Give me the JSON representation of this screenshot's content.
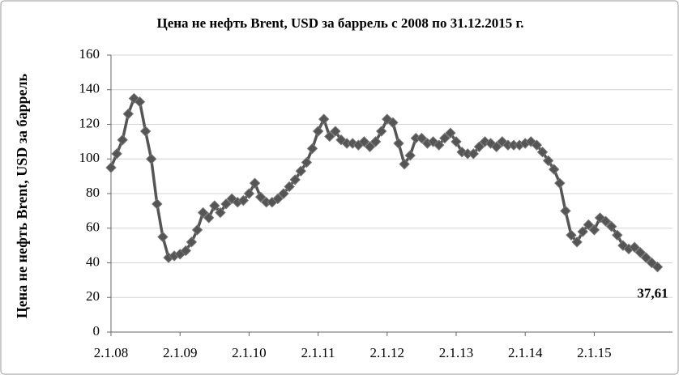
{
  "chart_data": {
    "type": "line",
    "title": "Цена не нефть Brent, USD за баррель с 2008 по 31.12.2015 г.",
    "y_label": "Цена не нефть Brent, USD за баррель",
    "categories": [
      "2.1.08",
      null,
      null,
      null,
      null,
      null,
      null,
      null,
      null,
      null,
      null,
      null,
      "2.1.09",
      null,
      null,
      null,
      null,
      null,
      null,
      null,
      null,
      null,
      null,
      null,
      "2.1.10",
      null,
      null,
      null,
      null,
      null,
      null,
      null,
      null,
      null,
      null,
      null,
      "2.1.11",
      null,
      null,
      null,
      null,
      null,
      null,
      null,
      null,
      null,
      null,
      null,
      "2.1.12",
      null,
      null,
      null,
      null,
      null,
      null,
      null,
      null,
      null,
      null,
      null,
      "2.1.13",
      null,
      null,
      null,
      null,
      null,
      null,
      null,
      null,
      null,
      null,
      null,
      "2.1.14",
      null,
      null,
      null,
      null,
      null,
      null,
      null,
      null,
      null,
      null,
      null,
      "2.1.15",
      null,
      null,
      null,
      null,
      null,
      null,
      null,
      null,
      null,
      null,
      null
    ],
    "values": [
      95,
      103,
      111,
      126,
      135,
      133,
      116,
      100,
      74,
      55,
      43,
      44,
      45,
      47,
      52,
      59,
      69,
      66,
      73,
      69,
      74,
      77,
      75,
      76,
      80,
      86,
      78,
      75,
      75,
      77,
      80,
      84,
      88,
      93,
      98,
      106,
      116,
      123,
      113,
      116,
      111,
      109,
      109,
      108,
      110,
      107,
      110,
      116,
      123,
      121,
      109,
      97,
      102,
      112,
      112,
      109,
      110,
      108,
      112,
      115,
      110,
      104,
      103,
      103,
      107,
      110,
      109,
      107,
      110,
      108,
      108,
      108,
      109,
      110,
      108,
      104,
      99,
      94,
      86,
      70,
      56,
      52,
      58,
      62,
      59,
      66,
      64,
      61,
      56,
      50,
      48,
      49,
      46,
      43,
      40,
      37.61
    ],
    "value_labels": [
      null,
      null,
      null,
      null,
      null,
      null,
      null,
      null,
      null,
      null,
      null,
      null,
      null,
      null,
      null,
      null,
      null,
      null,
      null,
      null,
      null,
      null,
      null,
      null,
      null,
      null,
      null,
      null,
      null,
      null,
      null,
      null,
      null,
      null,
      null,
      null,
      null,
      null,
      null,
      null,
      null,
      null,
      null,
      null,
      null,
      null,
      null,
      null,
      null,
      null,
      null,
      null,
      null,
      null,
      null,
      null,
      null,
      null,
      null,
      null,
      null,
      null,
      null,
      null,
      null,
      null,
      null,
      null,
      null,
      null,
      null,
      null,
      null,
      null,
      null,
      null,
      null,
      null,
      null,
      null,
      null,
      null,
      null,
      null,
      null,
      null,
      null,
      null,
      null,
      null,
      null,
      null,
      null,
      null,
      null,
      "37,61"
    ],
    "color": "#555555",
    "ylim": [
      0,
      160
    ],
    "yticks": [
      0,
      20,
      40,
      60,
      80,
      100,
      120,
      140,
      160
    ],
    "grid": true
  }
}
